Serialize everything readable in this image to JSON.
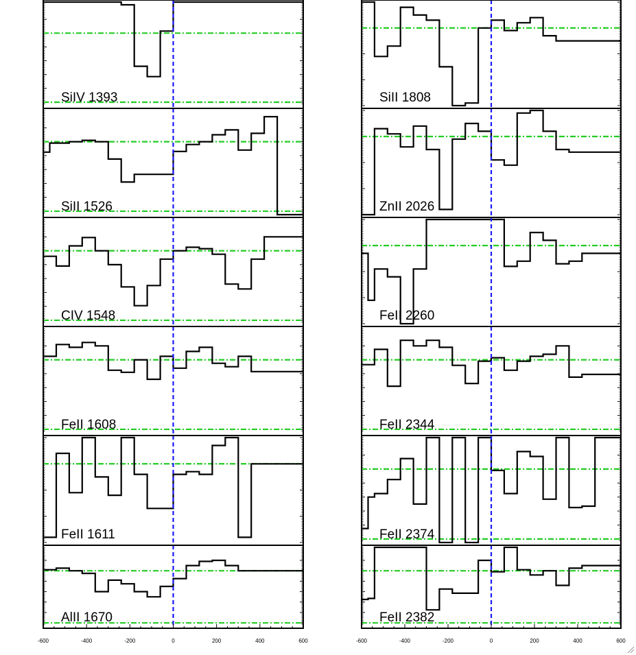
{
  "chart_data": [
    {
      "type": "line",
      "label": "SiIV 1393",
      "column": "left",
      "ylim": [
        -0.05,
        1.45
      ],
      "yticks": [
        "0.0",
        "0.2",
        "0.4",
        "0.6",
        "0.8",
        "1.0",
        "1.2"
      ],
      "continuum": 1.0,
      "zero": 0.0,
      "x": [
        -600,
        -540,
        -480,
        -420,
        -360,
        -300,
        -240,
        -180,
        -120,
        -60,
        0,
        60,
        120,
        180,
        240,
        300,
        360,
        420,
        480,
        540,
        600
      ],
      "y": [
        1.45,
        1.45,
        1.45,
        1.45,
        1.45,
        1.45,
        1.41,
        0.52,
        0.37,
        1.03,
        1.45,
        1.45,
        1.45,
        1.45,
        1.45,
        1.45,
        1.45,
        1.45,
        1.45,
        1.45,
        1.45
      ]
    },
    {
      "type": "line",
      "label": "SiII 1526",
      "column": "left",
      "ylim": [
        -0.05,
        1.45
      ],
      "yticks": [
        "0.0",
        "0.2",
        "0.4",
        "0.6",
        "0.8",
        "1.0",
        "1.2"
      ],
      "continuum": 1.0,
      "zero": 0.0,
      "x": [
        -600,
        -570,
        -540,
        -480,
        -420,
        -360,
        -300,
        -240,
        -180,
        -120,
        -60,
        0,
        60,
        120,
        180,
        240,
        300,
        360,
        420,
        480,
        540,
        600
      ],
      "y": [
        0.85,
        0.98,
        0.98,
        1.0,
        1.02,
        1.0,
        0.75,
        0.42,
        0.53,
        0.53,
        0.53,
        0.86,
        0.96,
        1.0,
        1.1,
        1.17,
        0.88,
        1.12,
        1.36,
        -0.05,
        -0.05,
        -0.05
      ]
    },
    {
      "type": "line",
      "label": "CIV 1548",
      "column": "left",
      "ylim": [
        -0.05,
        1.45
      ],
      "yticks": [
        "0.0",
        "0.2",
        "0.4",
        "0.6",
        "0.8",
        "1.0",
        "1.2"
      ],
      "continuum": 1.0,
      "zero": 0.0,
      "x": [
        -600,
        -540,
        -480,
        -420,
        -360,
        -300,
        -240,
        -180,
        -120,
        -60,
        0,
        60,
        120,
        180,
        240,
        300,
        360,
        420,
        480,
        540,
        600
      ],
      "y": [
        0.92,
        0.78,
        1.07,
        1.19,
        1.0,
        0.8,
        0.48,
        0.21,
        0.5,
        0.88,
        1.0,
        1.05,
        1.03,
        0.95,
        0.52,
        0.45,
        0.88,
        1.2,
        1.2,
        1.2,
        1.2
      ]
    },
    {
      "type": "line",
      "label": "FeII 1608",
      "column": "left",
      "ylim": [
        -0.05,
        1.45
      ],
      "yticks": [
        "0.0",
        "0.2",
        "0.4",
        "0.6",
        "0.8",
        "1.0",
        "1.2"
      ],
      "continuum": 1.0,
      "zero": 0.0,
      "x": [
        -600,
        -540,
        -480,
        -420,
        -360,
        -300,
        -240,
        -180,
        -120,
        -60,
        0,
        60,
        120,
        180,
        240,
        300,
        360,
        420,
        480,
        540,
        600
      ],
      "y": [
        1.05,
        1.22,
        1.18,
        1.25,
        1.2,
        0.85,
        0.82,
        1.0,
        0.72,
        1.05,
        0.88,
        1.12,
        1.18,
        0.95,
        0.9,
        1.05,
        0.83,
        0.83,
        0.83,
        0.83,
        0.83
      ]
    },
    {
      "type": "line",
      "label": "FeII 1611",
      "column": "left",
      "ylim": [
        0.7,
        1.1
      ],
      "yticks": [
        "0.7",
        "0.8",
        "0.9",
        "1.0",
        "1.1"
      ],
      "continuum": 1.0,
      "zero": null,
      "x": [
        -600,
        -540,
        -480,
        -420,
        -360,
        -300,
        -240,
        -180,
        -120,
        -60,
        0,
        60,
        120,
        180,
        240,
        300,
        360,
        420,
        480,
        540,
        600
      ],
      "y": [
        0.72,
        1.04,
        0.89,
        1.1,
        0.95,
        0.88,
        1.1,
        0.96,
        0.83,
        0.83,
        0.96,
        0.97,
        0.96,
        1.07,
        1.1,
        0.72,
        1.0,
        1.0,
        1.0,
        1.0,
        1.0
      ]
    },
    {
      "type": "line",
      "label": "AlII 1670",
      "column": "left",
      "ylim": [
        -0.05,
        1.45
      ],
      "yticks": [
        "0.0",
        "0.2",
        "0.4",
        "0.6",
        "0.8",
        "1.0",
        "1.2"
      ],
      "continuum": 1.0,
      "zero": 0.0,
      "x": [
        -600,
        -540,
        -480,
        -420,
        -360,
        -300,
        -240,
        -180,
        -120,
        -60,
        0,
        60,
        120,
        180,
        240,
        300,
        360,
        420,
        480,
        540,
        600
      ],
      "y": [
        1.02,
        1.05,
        1.0,
        0.95,
        0.6,
        0.82,
        0.75,
        0.6,
        0.5,
        0.7,
        0.85,
        1.1,
        1.18,
        1.2,
        1.1,
        1.0,
        1.0,
        1.0,
        1.0,
        1.0,
        1.0
      ]
    },
    {
      "type": "line",
      "label": "SiII 1808",
      "column": "right",
      "ylim": [
        0.7,
        1.1
      ],
      "yticks": [
        "0.7",
        "0.8",
        "0.9",
        "1.0",
        "1.1"
      ],
      "continuum": 1.0,
      "zero": null,
      "x": [
        -600,
        -540,
        -480,
        -420,
        -360,
        -300,
        -240,
        -180,
        -120,
        -60,
        0,
        60,
        120,
        180,
        240,
        300,
        360,
        420,
        480,
        540,
        600
      ],
      "y": [
        1.1,
        0.89,
        0.93,
        1.08,
        1.05,
        1.03,
        0.85,
        0.7,
        0.71,
        1.0,
        1.03,
        0.99,
        1.02,
        1.04,
        0.97,
        0.95,
        0.95,
        0.95,
        0.95,
        0.95,
        0.95
      ]
    },
    {
      "type": "line",
      "label": "ZnII 2026",
      "column": "right",
      "ylim": [
        0.7,
        1.1
      ],
      "yticks": [
        "0.7",
        "0.8",
        "0.9",
        "1.0",
        "1.1"
      ],
      "continuum": 1.0,
      "zero": null,
      "x": [
        -600,
        -540,
        -480,
        -420,
        -360,
        -300,
        -240,
        -180,
        -120,
        -60,
        0,
        60,
        120,
        180,
        240,
        300,
        360,
        420,
        480,
        540,
        600
      ],
      "y": [
        0.7,
        1.03,
        1.01,
        0.96,
        1.04,
        0.95,
        0.72,
        0.99,
        1.05,
        1.02,
        0.91,
        0.89,
        1.09,
        1.1,
        1.02,
        0.95,
        0.94,
        0.94,
        0.94,
        0.94,
        0.94
      ]
    },
    {
      "type": "line",
      "label": "FeII 2260",
      "column": "right",
      "ylim": [
        0.7,
        1.1
      ],
      "yticks": [
        "0.7",
        "0.8",
        "0.9",
        "1.0",
        "1.1"
      ],
      "continuum": 1.0,
      "zero": null,
      "x": [
        -600,
        -570,
        -540,
        -480,
        -420,
        -360,
        -300,
        -240,
        -180,
        -120,
        -60,
        0,
        60,
        120,
        180,
        240,
        300,
        360,
        420,
        480,
        540,
        600
      ],
      "y": [
        0.97,
        0.79,
        0.91,
        0.88,
        0.7,
        0.91,
        1.1,
        1.1,
        1.1,
        1.1,
        1.1,
        1.1,
        0.92,
        0.94,
        1.05,
        1.02,
        0.93,
        0.94,
        0.97,
        0.97,
        0.97,
        0.97
      ]
    },
    {
      "type": "line",
      "label": "FeII 2344",
      "column": "right",
      "ylim": [
        -0.05,
        1.45
      ],
      "yticks": [
        "0.0",
        "0.2",
        "0.4",
        "0.6",
        "0.8",
        "1.0",
        "1.2"
      ],
      "continuum": 1.0,
      "zero": 0.0,
      "x": [
        -600,
        -540,
        -480,
        -420,
        -360,
        -300,
        -240,
        -180,
        -120,
        -60,
        0,
        60,
        120,
        180,
        240,
        300,
        360,
        420,
        480,
        540,
        600
      ],
      "y": [
        0.93,
        1.15,
        0.62,
        1.28,
        1.2,
        1.28,
        1.18,
        0.92,
        0.66,
        0.98,
        1.03,
        0.85,
        0.98,
        1.05,
        1.08,
        1.2,
        0.75,
        0.79,
        0.79,
        0.79,
        0.79
      ]
    },
    {
      "type": "line",
      "label": "FeII 2374",
      "column": "right",
      "ylim": [
        -0.05,
        1.45
      ],
      "yticks": [
        "0.0",
        "0.2",
        "0.4",
        "0.6",
        "0.8",
        "1.0",
        "1.2"
      ],
      "continuum": 1.0,
      "zero": 0.0,
      "x": [
        -600,
        -570,
        -540,
        -480,
        -420,
        -360,
        -300,
        -240,
        -180,
        -120,
        -60,
        0,
        60,
        120,
        180,
        240,
        300,
        360,
        420,
        480,
        540,
        600
      ],
      "y": [
        0.15,
        0.6,
        0.65,
        0.85,
        1.15,
        0.5,
        1.45,
        -0.05,
        1.45,
        -0.05,
        1.45,
        0.98,
        0.65,
        1.25,
        1.18,
        0.57,
        1.45,
        0.45,
        0.47,
        1.45,
        1.45,
        1.45
      ]
    },
    {
      "type": "line",
      "label": "FeII 2382",
      "column": "right",
      "ylim": [
        -0.05,
        1.45
      ],
      "yticks": [
        "0.0",
        "0.2",
        "0.4",
        "0.6",
        "0.8",
        "1.0",
        "1.2"
      ],
      "continuum": 1.0,
      "zero": 0.0,
      "x": [
        -600,
        -570,
        -540,
        -480,
        -420,
        -360,
        -300,
        -240,
        -180,
        -120,
        -60,
        0,
        60,
        120,
        180,
        240,
        300,
        360,
        420,
        480,
        540,
        600
      ],
      "y": [
        0.45,
        0.47,
        1.45,
        1.45,
        1.45,
        1.45,
        0.25,
        0.65,
        0.57,
        0.57,
        1.2,
        0.98,
        1.45,
        1.02,
        0.92,
        1.0,
        0.72,
        1.05,
        1.1,
        1.1,
        1.1,
        1.1
      ]
    }
  ],
  "x_axis": {
    "xlim": [
      -600,
      600
    ],
    "ticks": [
      -600,
      -400,
      -200,
      0,
      200,
      400,
      600
    ],
    "tick_labels": [
      "-600",
      "-400",
      "-200",
      "0",
      "200",
      "400",
      "600"
    ]
  },
  "colors": {
    "profile": "#000000",
    "continuum": "#22cc22",
    "zero_velocity": "#1a1aff",
    "axes": "#000000"
  }
}
